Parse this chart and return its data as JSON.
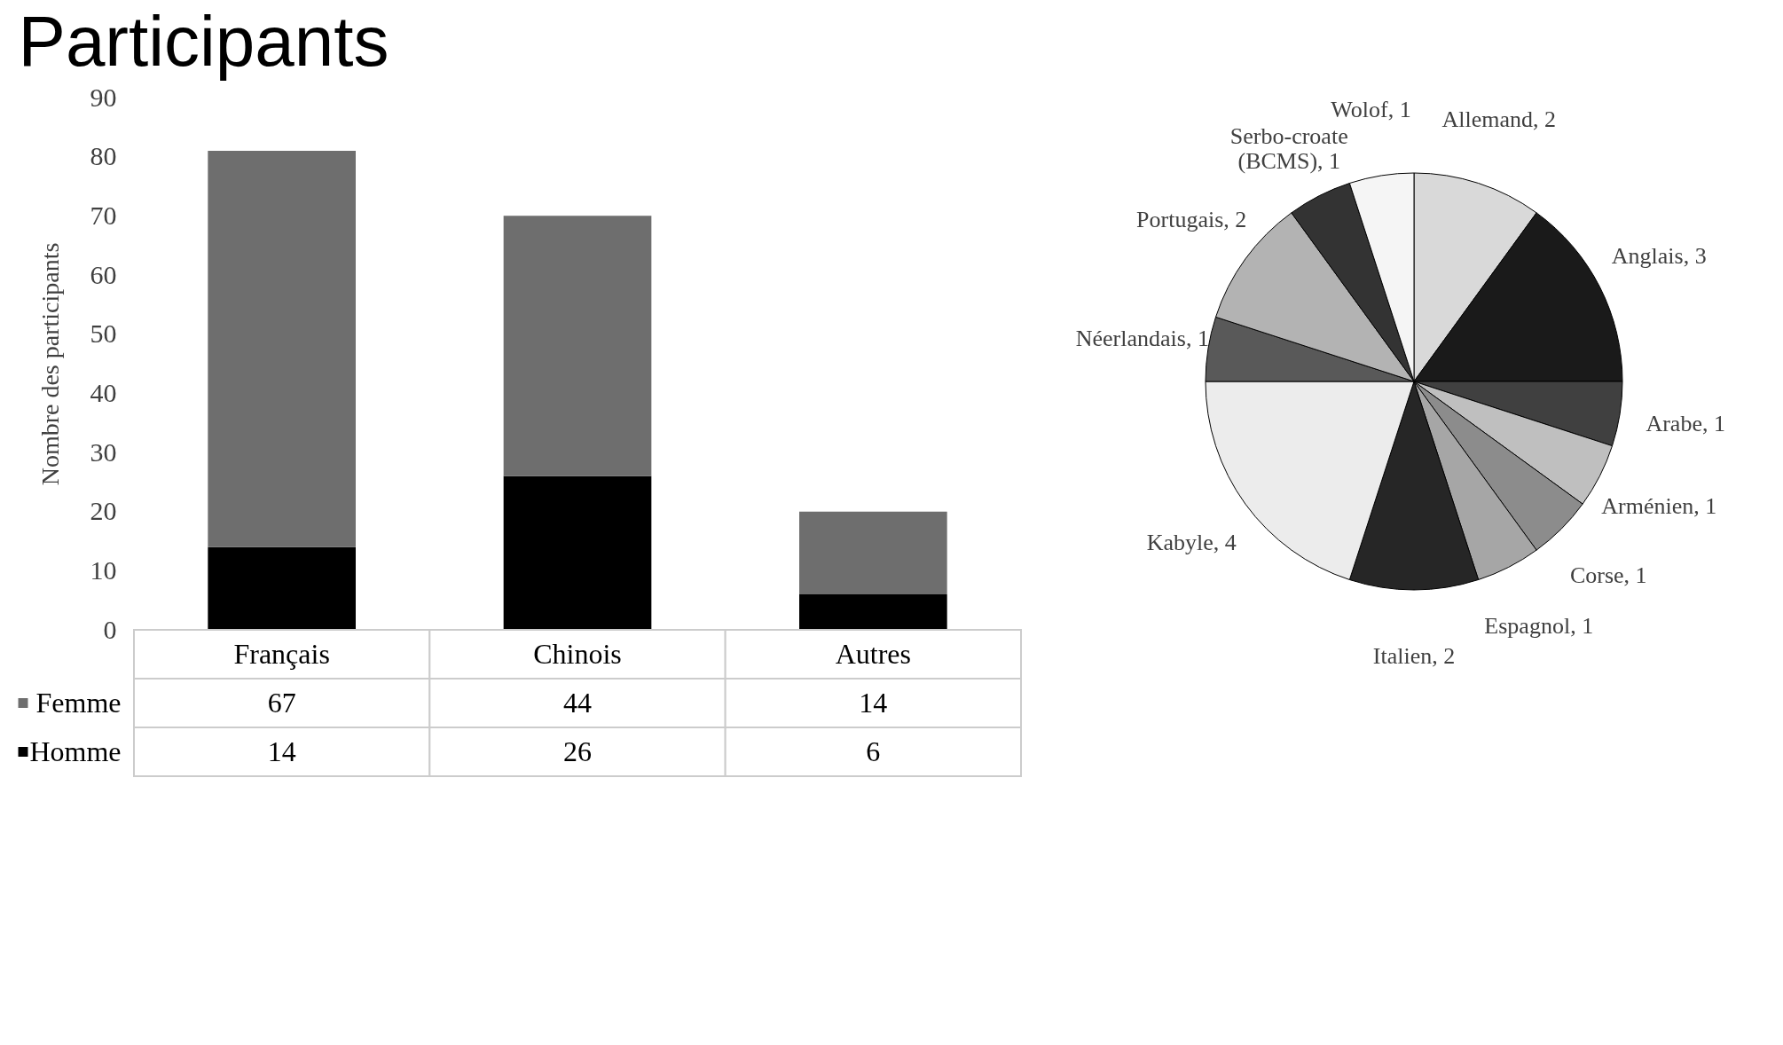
{
  "chart_data": [
    {
      "type": "bar",
      "title": "Participants",
      "ylabel": "Nombre des participants",
      "categories": [
        "Français",
        "Chinois",
        "Autres"
      ],
      "series": [
        {
          "name": "Homme",
          "color": "#000000",
          "values": [
            14,
            26,
            6
          ]
        },
        {
          "name": "Femme",
          "color": "#6e6e6e",
          "values": [
            67,
            44,
            14
          ]
        }
      ],
      "stacked": true,
      "data_labels": true,
      "legend": "bottom",
      "ylim": [
        0,
        90
      ],
      "yticks": [
        0,
        10,
        20,
        30,
        40,
        50,
        60,
        70,
        80,
        90
      ]
    },
    {
      "type": "pie",
      "categories": [
        "Allemand, 2",
        "Anglais, 3",
        "Arabe, 1",
        "Arménien, 1",
        "Corse, 1",
        "Espagnol, 1",
        "Italien, 2",
        "Kabyle, 4",
        "Néerlandais, 1",
        "Portugais, 2",
        "Serbo-croate (BCMS), 1",
        "Wolof, 1"
      ],
      "values": [
        2,
        3,
        1,
        1,
        1,
        1,
        2,
        4,
        1,
        2,
        1,
        1
      ],
      "colors": [
        "#d9d9d9",
        "#1a1a1a",
        "#404040",
        "#bfbfbf",
        "#8c8c8c",
        "#a6a6a6",
        "#262626",
        "#ececec",
        "#595959",
        "#b3b3b3",
        "#333333",
        "#f5f5f5"
      ]
    }
  ]
}
